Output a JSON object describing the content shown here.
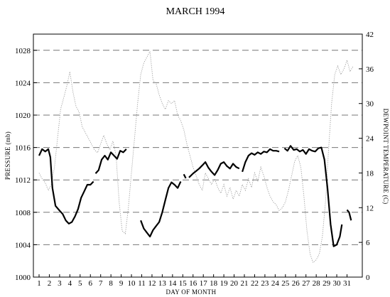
{
  "chart_data": {
    "type": "line",
    "title": "MARCH 1994",
    "xlabel": "DAY OF MONTH",
    "ylabel_left": "PRESSURE (mb)",
    "ylabel_right": "DEWPOINT TEMPERATURE (C)",
    "x_ticks": [
      1,
      2,
      3,
      4,
      5,
      6,
      7,
      8,
      9,
      10,
      11,
      12,
      13,
      14,
      15,
      16,
      17,
      18,
      19,
      20,
      21,
      22,
      23,
      24,
      25,
      26,
      27,
      28,
      29,
      30,
      31
    ],
    "xlim": [
      1,
      31.6
    ],
    "y_left": {
      "ylim": [
        1000,
        1030
      ],
      "ticks": [
        1000,
        1004,
        1008,
        1012,
        1016,
        1020,
        1024,
        1028
      ]
    },
    "y_right": {
      "ylim": [
        0,
        42
      ],
      "ticks": [
        0,
        6,
        12,
        18,
        24,
        30,
        36,
        42
      ]
    },
    "grid": "horizontal dashed at each tick",
    "colors": {
      "pressure": "#000000",
      "dewpoint": "#9a9a9a",
      "grid": "#777777"
    },
    "series": [
      {
        "axis": "left",
        "style": "solid-thick",
        "segments": [
          [
            [
              1.0,
              1015.0
            ],
            [
              1.3,
              1015.8
            ],
            [
              1.6,
              1015.5
            ],
            [
              1.9,
              1015.8
            ],
            [
              2.1,
              1014.8
            ],
            [
              2.3,
              1011.0
            ],
            [
              2.6,
              1008.8
            ],
            [
              3.0,
              1008.2
            ],
            [
              3.3,
              1007.8
            ],
            [
              3.6,
              1007.0
            ],
            [
              3.9,
              1006.6
            ],
            [
              4.2,
              1006.8
            ],
            [
              4.5,
              1007.5
            ],
            [
              4.8,
              1008.4
            ],
            [
              5.1,
              1009.8
            ],
            [
              5.4,
              1010.6
            ],
            [
              5.7,
              1011.4
            ],
            [
              6.0,
              1011.4
            ],
            [
              6.3,
              1011.8
            ]
          ],
          [
            [
              6.5,
              1012.8
            ],
            [
              6.8,
              1013.2
            ],
            [
              7.1,
              1014.5
            ],
            [
              7.4,
              1015.0
            ],
            [
              7.7,
              1014.5
            ],
            [
              8.0,
              1015.4
            ],
            [
              8.3,
              1015.0
            ],
            [
              8.6,
              1014.6
            ],
            [
              8.9,
              1015.6
            ],
            [
              9.2,
              1015.4
            ],
            [
              9.5,
              1015.8
            ]
          ],
          [
            [
              10.9,
              1007.0
            ],
            [
              11.2,
              1006.0
            ],
            [
              11.5,
              1005.5
            ],
            [
              11.8,
              1005.0
            ],
            [
              12.1,
              1005.8
            ],
            [
              12.4,
              1006.3
            ],
            [
              12.7,
              1006.8
            ],
            [
              13.0,
              1008.0
            ],
            [
              13.3,
              1009.5
            ],
            [
              13.6,
              1011.0
            ],
            [
              13.9,
              1011.7
            ],
            [
              14.2,
              1011.4
            ],
            [
              14.5,
              1011.0
            ],
            [
              14.8,
              1011.8
            ]
          ],
          [
            [
              15.1,
              1012.7
            ],
            [
              15.3,
              1012.2
            ]
          ],
          [
            [
              15.6,
              1012.3
            ],
            [
              16.0,
              1012.8
            ],
            [
              16.3,
              1013.1
            ],
            [
              16.6,
              1013.4
            ],
            [
              16.9,
              1013.8
            ],
            [
              17.2,
              1014.2
            ],
            [
              17.5,
              1013.5
            ],
            [
              17.8,
              1013.0
            ],
            [
              18.1,
              1012.6
            ],
            [
              18.4,
              1013.2
            ],
            [
              18.7,
              1014.0
            ],
            [
              19.0,
              1014.2
            ],
            [
              19.3,
              1013.7
            ],
            [
              19.6,
              1013.4
            ],
            [
              19.9,
              1014.0
            ],
            [
              20.2,
              1013.6
            ],
            [
              20.5,
              1013.4
            ]
          ],
          [
            [
              20.8,
              1013.0
            ],
            [
              21.1,
              1014.2
            ],
            [
              21.4,
              1015.0
            ],
            [
              21.7,
              1015.3
            ],
            [
              22.0,
              1015.1
            ],
            [
              22.3,
              1015.4
            ],
            [
              22.6,
              1015.2
            ],
            [
              22.9,
              1015.5
            ],
            [
              23.2,
              1015.4
            ],
            [
              23.5,
              1015.8
            ],
            [
              23.8,
              1015.6
            ],
            [
              24.1,
              1015.6
            ],
            [
              24.4,
              1015.5
            ]
          ],
          [
            [
              24.9,
              1015.9
            ],
            [
              25.2,
              1015.6
            ],
            [
              25.5,
              1016.2
            ],
            [
              25.8,
              1015.7
            ],
            [
              26.1,
              1015.8
            ],
            [
              26.4,
              1015.5
            ],
            [
              26.7,
              1015.7
            ],
            [
              27.0,
              1015.2
            ],
            [
              27.3,
              1015.8
            ],
            [
              27.6,
              1015.6
            ],
            [
              27.9,
              1015.5
            ],
            [
              28.2,
              1015.9
            ],
            [
              28.5,
              1016.0
            ],
            [
              28.8,
              1014.5
            ],
            [
              29.1,
              1011.0
            ],
            [
              29.4,
              1006.5
            ],
            [
              29.7,
              1003.8
            ],
            [
              30.0,
              1004.0
            ],
            [
              30.3,
              1005.0
            ],
            [
              30.5,
              1006.5
            ]
          ],
          [
            [
              31.0,
              1008.3
            ],
            [
              31.2,
              1008.0
            ],
            [
              31.4,
              1007.0
            ]
          ]
        ]
      },
      {
        "axis": "right",
        "style": "dotted-thin",
        "segments": [
          [
            [
              1.0,
              18.0
            ],
            [
              1.3,
              17.0
            ],
            [
              1.6,
              16.3
            ],
            [
              1.9,
              15.0
            ],
            [
              2.2,
              16.0
            ],
            [
              2.5,
              19.0
            ],
            [
              2.8,
              24.0
            ],
            [
              3.1,
              29.0
            ],
            [
              3.4,
              31.0
            ],
            [
              3.7,
              33.0
            ],
            [
              4.0,
              35.5
            ],
            [
              4.3,
              32.0
            ],
            [
              4.6,
              29.5
            ],
            [
              4.9,
              28.5
            ],
            [
              5.2,
              26.0
            ],
            [
              5.5,
              25.0
            ],
            [
              5.8,
              24.0
            ],
            [
              6.1,
              23.0
            ],
            [
              6.4,
              22.0
            ],
            [
              6.7,
              21.5
            ],
            [
              7.0,
              23.0
            ],
            [
              7.3,
              24.5
            ],
            [
              7.6,
              23.0
            ],
            [
              7.9,
              22.0
            ],
            [
              8.2,
              23.5
            ],
            [
              8.5,
              21.0
            ],
            [
              8.8,
              13.0
            ],
            [
              9.1,
              8.0
            ],
            [
              9.4,
              7.5
            ],
            [
              9.7,
              12.0
            ],
            [
              10.0,
              18.0
            ],
            [
              10.3,
              24.0
            ],
            [
              10.6,
              30.0
            ],
            [
              10.9,
              35.0
            ],
            [
              11.2,
              37.0
            ],
            [
              11.5,
              38.0
            ],
            [
              11.8,
              39.0
            ],
            [
              12.1,
              34.0
            ],
            [
              12.4,
              33.5
            ],
            [
              12.7,
              31.5
            ],
            [
              13.0,
              30.0
            ],
            [
              13.3,
              29.0
            ],
            [
              13.6,
              30.5
            ],
            [
              13.9,
              30.0
            ],
            [
              14.2,
              30.5
            ],
            [
              14.5,
              28.0
            ],
            [
              14.8,
              27.0
            ],
            [
              15.1,
              25.5
            ],
            [
              15.4,
              23.0
            ],
            [
              15.7,
              21.0
            ],
            [
              16.0,
              19.0
            ],
            [
              16.3,
              17.5
            ],
            [
              16.6,
              16.0
            ],
            [
              16.9,
              15.0
            ],
            [
              17.2,
              18.0
            ],
            [
              17.5,
              17.0
            ],
            [
              17.8,
              16.0
            ],
            [
              18.1,
              17.0
            ],
            [
              18.4,
              15.5
            ],
            [
              18.7,
              14.5
            ],
            [
              19.0,
              16.0
            ],
            [
              19.3,
              14.0
            ],
            [
              19.6,
              15.5
            ],
            [
              19.9,
              13.5
            ],
            [
              20.2,
              15.0
            ],
            [
              20.5,
              14.0
            ],
            [
              20.8,
              16.0
            ],
            [
              21.1,
              15.0
            ],
            [
              21.4,
              17.0
            ],
            [
              21.7,
              15.5
            ],
            [
              22.0,
              18.0
            ],
            [
              22.3,
              16.5
            ],
            [
              22.6,
              19.0
            ],
            [
              22.9,
              17.5
            ],
            [
              23.2,
              15.5
            ],
            [
              23.5,
              14.0
            ],
            [
              23.8,
              13.0
            ],
            [
              24.1,
              12.5
            ],
            [
              24.4,
              11.5
            ],
            [
              24.7,
              12.0
            ],
            [
              25.0,
              13.0
            ],
            [
              25.3,
              15.0
            ],
            [
              25.6,
              17.5
            ],
            [
              25.9,
              20.0
            ],
            [
              26.2,
              21.0
            ],
            [
              26.5,
              19.0
            ],
            [
              26.8,
              14.0
            ],
            [
              27.1,
              8.0
            ],
            [
              27.4,
              4.0
            ],
            [
              27.7,
              2.5
            ],
            [
              28.0,
              3.0
            ],
            [
              28.3,
              4.0
            ],
            [
              28.6,
              7.0
            ],
            [
              28.9,
              13.0
            ],
            [
              29.2,
              22.0
            ],
            [
              29.5,
              30.0
            ],
            [
              29.8,
              35.0
            ],
            [
              30.1,
              36.5
            ],
            [
              30.4,
              35.0
            ],
            [
              30.7,
              36.0
            ],
            [
              31.0,
              37.5
            ],
            [
              31.3,
              35.5
            ],
            [
              31.6,
              36.5
            ]
          ]
        ]
      }
    ]
  }
}
